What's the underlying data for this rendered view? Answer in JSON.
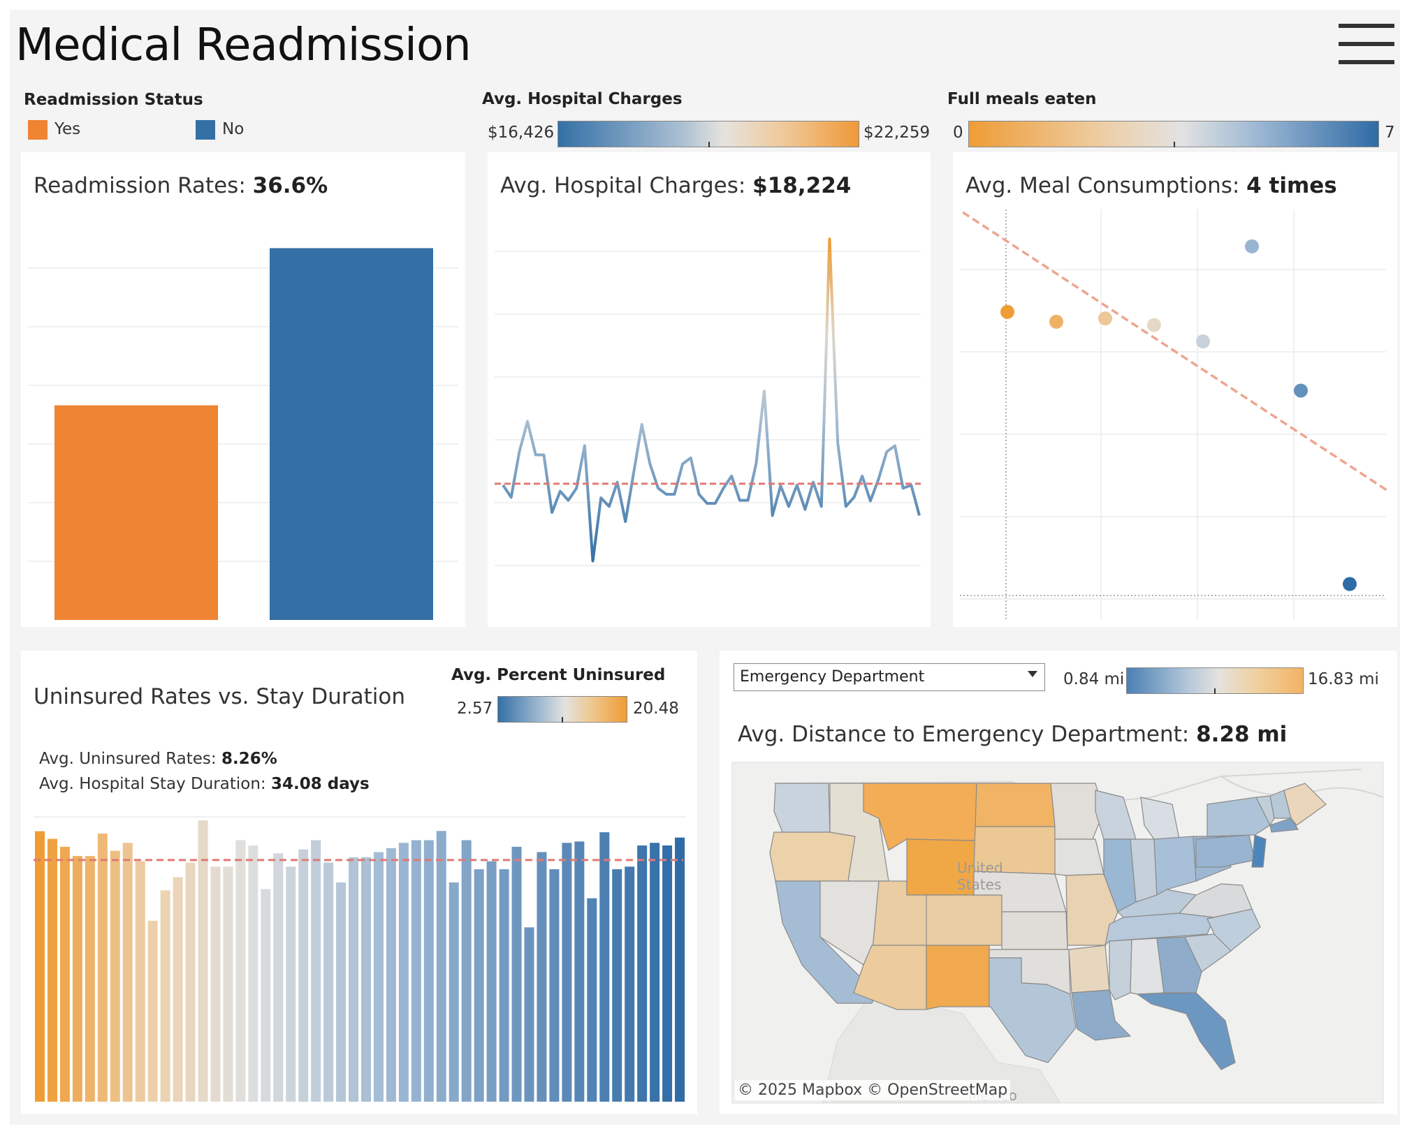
{
  "header": {
    "title": "Medical Readmission"
  },
  "legends": {
    "readmission": {
      "title": "Readmission Status",
      "items": [
        {
          "label": "Yes",
          "color": "#ef8432"
        },
        {
          "label": "No",
          "color": "#3470a6"
        }
      ]
    },
    "charges": {
      "title": "Avg. Hospital Charges",
      "min": "$16,426",
      "max": "$22,259"
    },
    "meals": {
      "title": "Full meals eaten",
      "min": "0",
      "max": "7"
    },
    "uninsured": {
      "title": "Avg. Percent Uninsured",
      "min": "2.57",
      "max": "20.48"
    },
    "distance": {
      "min": "0.84 mi",
      "max": "16.83 mi"
    }
  },
  "colors": {
    "orange": "#ef8432",
    "blue": "#3470a6",
    "mid": "#dcdcdc",
    "ref": "#e07a74"
  },
  "panels": {
    "readmission": {
      "label": "Readmission Rates: ",
      "value": "36.6%"
    },
    "charges": {
      "label": "Avg. Hospital Charges: ",
      "value": "$18,224"
    },
    "meals": {
      "label": "Avg. Meal Consumptions: ",
      "value": "4 times"
    },
    "uninsured": {
      "title": "Uninsured Rates vs. Stay Duration",
      "stat1_label": "Avg. Uninsured Rates: ",
      "stat1_value": "8.26%",
      "stat2_label": "Avg. Hospital Stay Duration: ",
      "stat2_value": "34.08 days"
    },
    "distance": {
      "dropdown": "Emergency Department",
      "label": "Avg. Distance to Emergency Department: ",
      "value": "8.28 mi"
    }
  },
  "map": {
    "attribution": "© 2025 Mapbox  © OpenStreetMap",
    "labels": {
      "country": "United\nStates",
      "mexico": "Mexico"
    }
  },
  "chart_data": [
    {
      "id": "readmission-bars",
      "type": "bar",
      "categories": [
        "Yes",
        "No"
      ],
      "values": [
        36.6,
        63.4
      ],
      "ylim": [
        0,
        70
      ],
      "grid": true
    },
    {
      "id": "charges-line",
      "type": "line",
      "values": [
        18200,
        18000,
        18750,
        19250,
        18700,
        18700,
        17750,
        18100,
        17950,
        18150,
        18850,
        16950,
        17990,
        17850,
        18250,
        17600,
        18400,
        19200,
        18550,
        18150,
        18050,
        18050,
        18550,
        18650,
        18050,
        17900,
        17900,
        18150,
        18350,
        17950,
        17950,
        18550,
        19750,
        17700,
        18190,
        17850,
        18200,
        17800,
        18250,
        17850,
        22259,
        18900,
        17850,
        18000,
        18350,
        17940,
        18300,
        18750,
        18850,
        18150,
        18200,
        17700
      ],
      "reference": 18224,
      "grid": true
    },
    {
      "id": "meals-scatter",
      "type": "scatter",
      "x": [
        0,
        1,
        2,
        3,
        4,
        5,
        6,
        7
      ],
      "y": [
        29.8,
        29.5,
        29.6,
        29.4,
        28.9,
        31.8,
        27.4,
        21.5
      ],
      "trend": true,
      "grid": true
    },
    {
      "id": "uninsured-bars",
      "type": "bar",
      "values": [
        20.48,
        19.9,
        19.3,
        18.6,
        18.6,
        20.3,
        19.0,
        19.6,
        18.2,
        13.7,
        16.0,
        17.0,
        18.1,
        21.3,
        17.8,
        17.8,
        19.8,
        19.4,
        16.1,
        18.8,
        17.8,
        19.1,
        19.8,
        18.1,
        16.6,
        18.5,
        18.5,
        18.9,
        19.2,
        19.6,
        19.8,
        19.8,
        20.5,
        16.6,
        19.8,
        17.6,
        18.2,
        17.6,
        19.3,
        13.2,
        18.9,
        17.6,
        19.6,
        19.7,
        15.4,
        20.4,
        17.6,
        17.8,
        19.4,
        19.6,
        19.4,
        20.0
      ],
      "reference": 18.3,
      "ylim": [
        0,
        22
      ]
    }
  ]
}
